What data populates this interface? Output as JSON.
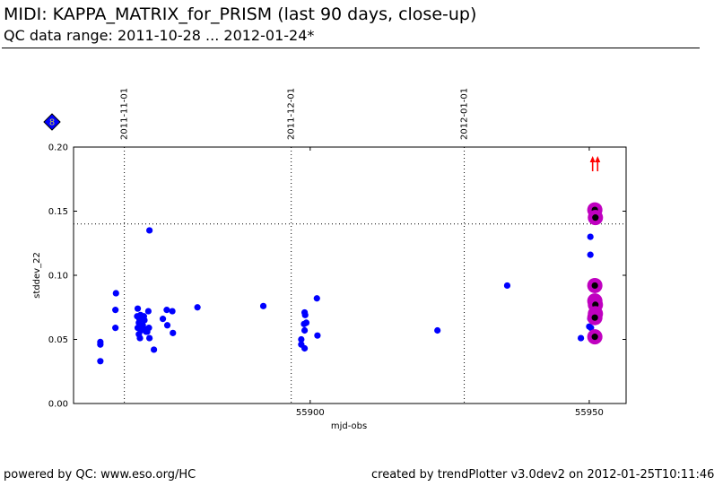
{
  "header": {
    "title": "MIDI: KAPPA_MATRIX_for_PRISM (last 90 days, close-up)",
    "subtitle": "QC data range: 2011-10-28 ... 2012-01-24*"
  },
  "footer": {
    "left": "powered by QC: www.eso.org/HC",
    "right": "created by trendPlotter v3.0dev2 on 2012-01-25T10:11:46"
  },
  "legend": {
    "marker_label": "8",
    "marker_color": "#0000ff"
  },
  "colors": {
    "point": "#0000ff",
    "highlight_ring": "#c000c0",
    "highlight_core": "#000000",
    "arrow": "#ff0000"
  },
  "chart_data": {
    "type": "scatter",
    "title": "",
    "xlabel": "mjd-obs",
    "ylabel": "stddev_22",
    "xlim": [
      55857.6,
      55956.6
    ],
    "ylim": [
      0.0,
      0.2
    ],
    "xticks": [
      55900,
      55950
    ],
    "xtick_labels": [
      "55900",
      "55950"
    ],
    "yticks": [
      0.0,
      0.05,
      0.1,
      0.15,
      0.2
    ],
    "ytick_labels": [
      "0.00",
      "0.05",
      "0.10",
      "0.15",
      "0.20"
    ],
    "date_markers": [
      {
        "label": "2011-11-01",
        "x": 55866.7
      },
      {
        "label": "2011-12-01",
        "x": 55896.6
      },
      {
        "label": "2012-01-01",
        "x": 55927.6
      }
    ],
    "threshold": 0.14,
    "out_of_range_x": [
      55950.6,
      55951.5
    ],
    "points": [
      {
        "x": 55862.4,
        "y": 0.048
      },
      {
        "x": 55862.4,
        "y": 0.046
      },
      {
        "x": 55862.4,
        "y": 0.033
      },
      {
        "x": 55865.2,
        "y": 0.086
      },
      {
        "x": 55865.1,
        "y": 0.073
      },
      {
        "x": 55865.1,
        "y": 0.059
      },
      {
        "x": 55869.1,
        "y": 0.074
      },
      {
        "x": 55869.0,
        "y": 0.068
      },
      {
        "x": 55869.6,
        "y": 0.069
      },
      {
        "x": 55870.2,
        "y": 0.068
      },
      {
        "x": 55869.4,
        "y": 0.066
      },
      {
        "x": 55870.3,
        "y": 0.065
      },
      {
        "x": 55869.3,
        "y": 0.063
      },
      {
        "x": 55870.0,
        "y": 0.061
      },
      {
        "x": 55869.1,
        "y": 0.059
      },
      {
        "x": 55870.4,
        "y": 0.058
      },
      {
        "x": 55871.1,
        "y": 0.059
      },
      {
        "x": 55869.7,
        "y": 0.057
      },
      {
        "x": 55870.6,
        "y": 0.056
      },
      {
        "x": 55869.3,
        "y": 0.054
      },
      {
        "x": 55869.5,
        "y": 0.051
      },
      {
        "x": 55870.8,
        "y": 0.056
      },
      {
        "x": 55871.0,
        "y": 0.072
      },
      {
        "x": 55871.2,
        "y": 0.051
      },
      {
        "x": 55871.2,
        "y": 0.135
      },
      {
        "x": 55872.0,
        "y": 0.042
      },
      {
        "x": 55873.6,
        "y": 0.066
      },
      {
        "x": 55874.3,
        "y": 0.073
      },
      {
        "x": 55874.4,
        "y": 0.061
      },
      {
        "x": 55875.3,
        "y": 0.072
      },
      {
        "x": 55875.4,
        "y": 0.055
      },
      {
        "x": 55879.8,
        "y": 0.075
      },
      {
        "x": 55891.6,
        "y": 0.076
      },
      {
        "x": 55898.4,
        "y": 0.05
      },
      {
        "x": 55898.4,
        "y": 0.046
      },
      {
        "x": 55899.0,
        "y": 0.071
      },
      {
        "x": 55899.1,
        "y": 0.069
      },
      {
        "x": 55898.9,
        "y": 0.062
      },
      {
        "x": 55899.3,
        "y": 0.063
      },
      {
        "x": 55899.0,
        "y": 0.057
      },
      {
        "x": 55899.0,
        "y": 0.043
      },
      {
        "x": 55901.2,
        "y": 0.082
      },
      {
        "x": 55901.3,
        "y": 0.053
      },
      {
        "x": 55922.8,
        "y": 0.057
      },
      {
        "x": 55935.3,
        "y": 0.092
      },
      {
        "x": 55948.5,
        "y": 0.051
      },
      {
        "x": 55950.2,
        "y": 0.13
      },
      {
        "x": 55950.2,
        "y": 0.116
      },
      {
        "x": 55950.2,
        "y": 0.066
      },
      {
        "x": 55950.0,
        "y": 0.06
      },
      {
        "x": 55950.3,
        "y": 0.059
      }
    ],
    "highlighted": [
      {
        "x": 55951.0,
        "y": 0.151
      },
      {
        "x": 55951.1,
        "y": 0.145
      },
      {
        "x": 55951.0,
        "y": 0.092
      },
      {
        "x": 55951.0,
        "y": 0.08
      },
      {
        "x": 55951.1,
        "y": 0.077
      },
      {
        "x": 55951.1,
        "y": 0.07
      },
      {
        "x": 55951.0,
        "y": 0.067
      },
      {
        "x": 55951.0,
        "y": 0.052
      }
    ]
  }
}
